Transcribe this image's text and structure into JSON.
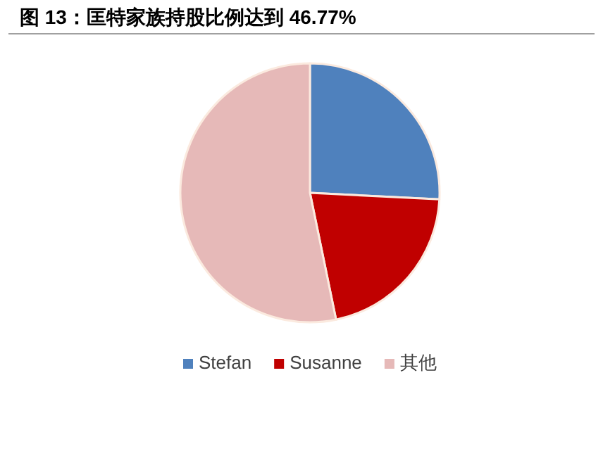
{
  "chart_data": {
    "type": "pie",
    "title": "图 13：匡特家族持股比例达到 46.77%",
    "categories": [
      "Stefan",
      "Susanne",
      "其他"
    ],
    "values": [
      25.8,
      20.97,
      53.23
    ],
    "colors": [
      "#4f81bd",
      "#c00000",
      "#e6b9b8"
    ],
    "legend": "bottom"
  }
}
